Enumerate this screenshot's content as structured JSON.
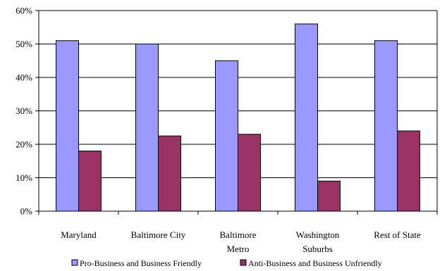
{
  "chart_data": {
    "type": "bar",
    "categories": [
      [
        "Maryland"
      ],
      [
        "Baltimore City"
      ],
      [
        "Baltimore",
        "Metro"
      ],
      [
        "Washington",
        "Suburbs"
      ],
      [
        "Rest of State"
      ]
    ],
    "series": [
      {
        "name": "Pro-Business and Business Friendly",
        "color": "#9999ff",
        "values": [
          51,
          50,
          45,
          56,
          51
        ]
      },
      {
        "name": "Anti-Business and Business Unfriendly",
        "color": "#993366",
        "values": [
          18,
          22.5,
          23,
          9,
          24
        ]
      }
    ],
    "ylim": [
      0,
      60
    ],
    "yticks": [
      0,
      10,
      20,
      30,
      40,
      50,
      60
    ],
    "ytick_labels": [
      "0%",
      "10%",
      "20%",
      "30%",
      "40%",
      "50%",
      "60%"
    ],
    "grid": true,
    "legend": "bottom",
    "title": "",
    "xlabel": "",
    "ylabel": ""
  }
}
